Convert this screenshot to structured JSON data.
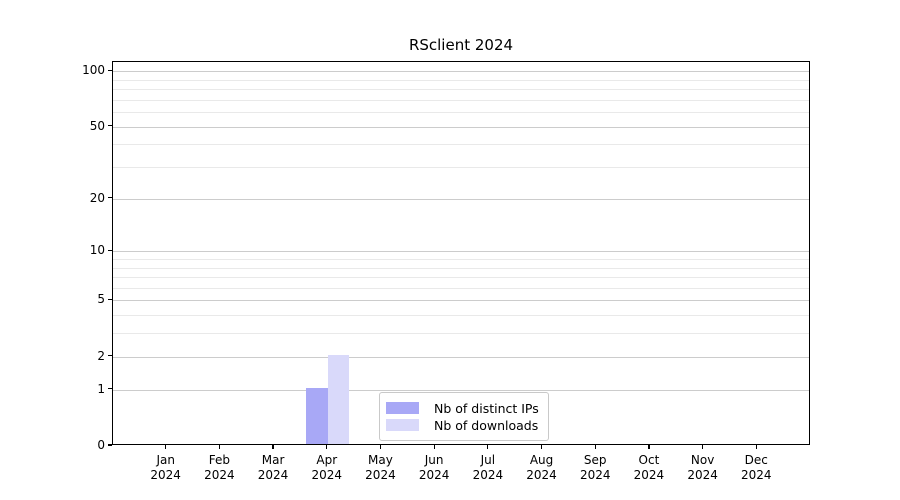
{
  "chart_data": {
    "type": "bar",
    "title": "RSclient 2024",
    "categories": [
      "Jan",
      "Feb",
      "Mar",
      "Apr",
      "May",
      "Jun",
      "Jul",
      "Aug",
      "Sep",
      "Oct",
      "Nov",
      "Dec"
    ],
    "category_year": "2024",
    "series": [
      {
        "name": "Nb of distinct IPs",
        "color": "#a8a8f6",
        "values": [
          0,
          0,
          0,
          1,
          0,
          0,
          0,
          0,
          0,
          0,
          0,
          0
        ]
      },
      {
        "name": "Nb of downloads",
        "color": "#d9d9fa",
        "values": [
          0,
          0,
          0,
          2,
          0,
          0,
          0,
          0,
          0,
          0,
          0,
          0
        ]
      }
    ],
    "xlabel": "",
    "ylabel": "",
    "yscale": "log1p",
    "ylim": [
      0,
      112
    ],
    "yticks": [
      0,
      1,
      2,
      5,
      10,
      20,
      50,
      100
    ],
    "yticks_minor": [
      3,
      4,
      6,
      7,
      8,
      9,
      30,
      40,
      60,
      70,
      80,
      90
    ],
    "grid": "horizontal",
    "legend_position": "inside-lower-center",
    "colors": {
      "major_grid": "#cccccc",
      "minor_grid": "#e9e9e9",
      "axis": "#000000",
      "text": "#000000",
      "background": "#ffffff"
    }
  }
}
